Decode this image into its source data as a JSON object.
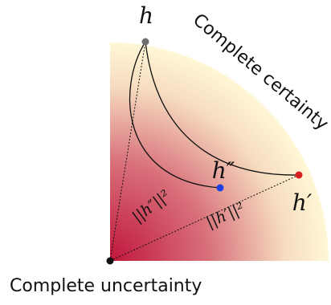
{
  "points": {
    "h": {
      "label": "h",
      "color": "#707070"
    },
    "h_prime": {
      "label": "h′",
      "color": "#d42020"
    },
    "h_double_prime": {
      "label": "h″",
      "color": "#1f3fe0"
    },
    "origin": {
      "color": "#111111"
    }
  },
  "labels": {
    "complete_certainty": "Complete certainty",
    "complete_uncertainty": "Complete uncertainty",
    "norm_h_double_prime": "||h″||²",
    "norm_h_prime": "||h′||²"
  },
  "colors": {
    "uncertain_end": "#c0163c",
    "certain_end": "#fff7d6",
    "curves": "#111111"
  }
}
